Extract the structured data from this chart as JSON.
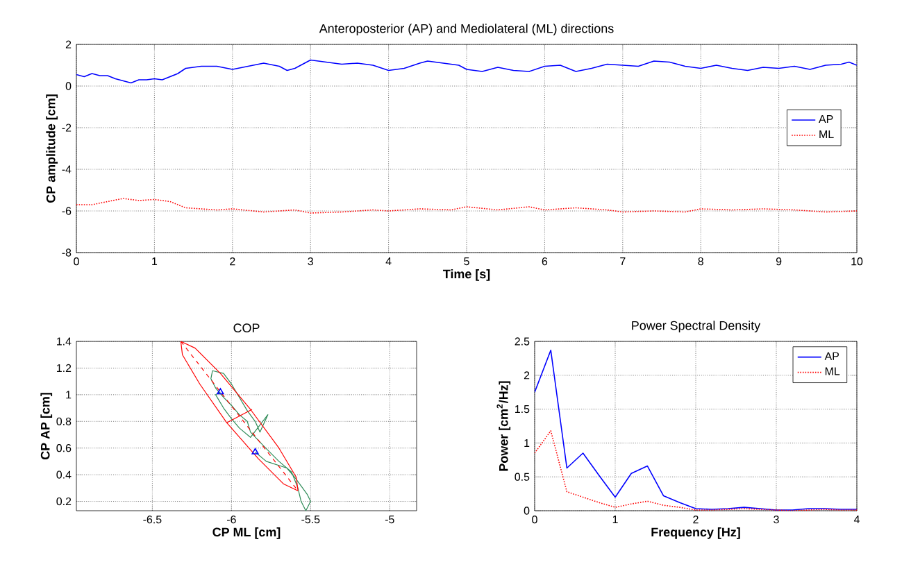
{
  "chart_data": [
    {
      "type": "line",
      "title": "Anteroposterior (AP) and Mediolateral (ML) directions",
      "xlabel": "Time [s]",
      "ylabel": "CP amplitude [cm]",
      "xlim": [
        0,
        10
      ],
      "ylim": [
        -8,
        2
      ],
      "xticks": [
        0,
        1,
        2,
        3,
        4,
        5,
        6,
        7,
        8,
        9,
        10
      ],
      "yticks": [
        -8,
        -6,
        -4,
        -2,
        0,
        2
      ],
      "grid": true,
      "legend": "right",
      "series": [
        {
          "name": "AP",
          "color": "#0000ff",
          "line_style": "solid",
          "x": [
            0,
            0.1,
            0.2,
            0.3,
            0.4,
            0.5,
            0.6,
            0.7,
            0.8,
            0.9,
            1.0,
            1.1,
            1.2,
            1.3,
            1.4,
            1.6,
            1.8,
            2.0,
            2.2,
            2.4,
            2.6,
            2.7,
            2.8,
            3.0,
            3.2,
            3.4,
            3.6,
            3.8,
            4.0,
            4.2,
            4.4,
            4.5,
            4.7,
            4.9,
            5.0,
            5.2,
            5.4,
            5.6,
            5.8,
            6.0,
            6.2,
            6.4,
            6.6,
            6.8,
            7.0,
            7.2,
            7.4,
            7.6,
            7.8,
            8.0,
            8.2,
            8.4,
            8.6,
            8.8,
            9.0,
            9.2,
            9.4,
            9.6,
            9.8,
            9.9,
            10
          ],
          "values": [
            0.55,
            0.45,
            0.6,
            0.5,
            0.5,
            0.35,
            0.25,
            0.15,
            0.3,
            0.3,
            0.35,
            0.3,
            0.45,
            0.6,
            0.85,
            0.95,
            0.95,
            0.8,
            0.95,
            1.1,
            0.95,
            0.75,
            0.85,
            1.25,
            1.15,
            1.05,
            1.1,
            1.0,
            0.75,
            0.85,
            1.1,
            1.2,
            1.1,
            1.0,
            0.8,
            0.7,
            0.9,
            0.75,
            0.7,
            0.95,
            1.0,
            0.7,
            0.85,
            1.05,
            1.0,
            0.95,
            1.2,
            1.15,
            0.95,
            0.85,
            1.0,
            0.85,
            0.75,
            0.9,
            0.85,
            0.95,
            0.8,
            1.0,
            1.05,
            1.15,
            1.0
          ]
        },
        {
          "name": "ML",
          "color": "#ff0000",
          "line_style": "dotted",
          "x": [
            0,
            0.2,
            0.4,
            0.6,
            0.8,
            1.0,
            1.2,
            1.4,
            1.6,
            1.8,
            2.0,
            2.4,
            2.8,
            3.0,
            3.4,
            3.8,
            4.0,
            4.4,
            4.8,
            5.0,
            5.4,
            5.8,
            6.0,
            6.4,
            6.8,
            7.0,
            7.4,
            7.8,
            8.0,
            8.4,
            8.8,
            9.2,
            9.6,
            10
          ],
          "values": [
            -5.7,
            -5.7,
            -5.55,
            -5.4,
            -5.5,
            -5.45,
            -5.55,
            -5.85,
            -5.9,
            -5.95,
            -5.9,
            -6.05,
            -5.95,
            -6.1,
            -6.05,
            -5.95,
            -6.0,
            -5.9,
            -5.95,
            -5.8,
            -5.95,
            -5.8,
            -5.95,
            -5.85,
            -5.95,
            -6.05,
            -6.0,
            -6.05,
            -5.9,
            -5.95,
            -5.9,
            -5.95,
            -6.05,
            -6.0
          ]
        }
      ]
    },
    {
      "type": "line",
      "title": "COP",
      "xlabel": "CP ML [cm]",
      "ylabel": "CP AP [cm]",
      "xlim": [
        -6.98,
        -4.83
      ],
      "ylim": [
        0.13,
        1.4
      ],
      "xticks": [
        -6.5,
        -6,
        -5.5,
        -5
      ],
      "yticks": [
        0.2,
        0.4,
        0.6,
        0.8,
        1,
        1.2,
        1.4
      ],
      "grid": true,
      "series": [
        {
          "color": "#2e8b57",
          "line_style": "solid",
          "x": [
            -5.85,
            -5.78,
            -5.65,
            -5.6,
            -5.55,
            -5.52,
            -5.5,
            -5.53,
            -5.56,
            -5.58,
            -5.62,
            -5.7,
            -5.8,
            -5.88,
            -5.9,
            -5.95,
            -6.0,
            -6.05,
            -6.1,
            -6.13,
            -6.12,
            -6.05,
            -6.0,
            -5.95,
            -5.9,
            -5.85,
            -5.82,
            -5.77,
            -5.88,
            -5.95,
            -6.0,
            -6.05,
            -6.1,
            -6.07
          ],
          "values": [
            0.57,
            0.5,
            0.45,
            0.38,
            0.3,
            0.25,
            0.2,
            0.13,
            0.2,
            0.3,
            0.42,
            0.5,
            0.62,
            0.72,
            0.8,
            0.85,
            0.92,
            0.98,
            1.05,
            1.12,
            1.18,
            1.16,
            1.08,
            0.98,
            0.88,
            0.8,
            0.72,
            0.85,
            0.68,
            0.75,
            0.82,
            0.9,
            1.0,
            1.02
          ]
        },
        {
          "color": "#ff0000",
          "line_style": "solid",
          "x": [
            -6.32,
            -6.23,
            -6.07,
            -5.88,
            -5.7,
            -5.59,
            -5.58
          ],
          "values": [
            1.4,
            1.35,
            1.16,
            0.89,
            0.6,
            0.38,
            0.28
          ]
        },
        {
          "color": "#ff0000",
          "line_style": "solid",
          "x": [
            -6.32,
            -6.31,
            -6.2,
            -6.03,
            -5.83,
            -5.67,
            -5.58
          ],
          "values": [
            1.4,
            1.3,
            1.08,
            0.79,
            0.52,
            0.33,
            0.28
          ]
        },
        {
          "color": "#ff0000",
          "line_style": "dashed",
          "x": [
            -6.32,
            -5.58
          ],
          "values": [
            1.4,
            0.28
          ]
        },
        {
          "color": "#ff0000",
          "line_style": "solid",
          "x": [
            -6.03,
            -5.87
          ],
          "values": [
            0.79,
            0.89
          ]
        },
        {
          "type": "scatter",
          "marker": "triangle",
          "color": "#0000ff",
          "x": [
            -6.07,
            -5.85
          ],
          "values": [
            1.02,
            0.57
          ]
        }
      ]
    },
    {
      "type": "line",
      "title": "Power Spectral Density",
      "xlabel": "Frequency [Hz]",
      "ylabel": "Power [cm$^{2}$/Hz]",
      "xlim": [
        0,
        4
      ],
      "ylim": [
        0,
        2.5
      ],
      "xticks": [
        0,
        1,
        2,
        3,
        4
      ],
      "yticks": [
        0,
        0.5,
        1,
        1.5,
        2,
        2.5
      ],
      "grid": true,
      "legend": "top right",
      "series": [
        {
          "name": "AP",
          "color": "#0000ff",
          "line_style": "solid",
          "x": [
            0,
            0.2,
            0.4,
            0.6,
            0.8,
            1.0,
            1.2,
            1.4,
            1.6,
            1.8,
            2.0,
            2.2,
            2.4,
            2.6,
            2.8,
            3.0,
            3.2,
            3.4,
            3.6,
            3.8,
            4.0
          ],
          "values": [
            1.75,
            2.37,
            0.63,
            0.85,
            0.52,
            0.2,
            0.55,
            0.66,
            0.22,
            0.12,
            0.03,
            0.02,
            0.03,
            0.05,
            0.03,
            0.01,
            0.01,
            0.03,
            0.03,
            0.02,
            0.02
          ]
        },
        {
          "name": "ML",
          "color": "#ff0000",
          "line_style": "dotted",
          "x": [
            0,
            0.2,
            0.4,
            0.6,
            0.8,
            1.0,
            1.2,
            1.4,
            1.6,
            1.8,
            2.0,
            2.2,
            2.4,
            2.6,
            2.8,
            3.0,
            3.2,
            3.4,
            3.6,
            3.8,
            4.0
          ],
          "values": [
            0.85,
            1.18,
            0.28,
            0.2,
            0.12,
            0.05,
            0.1,
            0.14,
            0.08,
            0.05,
            0.01,
            0.01,
            0.02,
            0.03,
            0.02,
            0.01,
            0.0,
            0.01,
            0.02,
            0.01,
            0.01
          ]
        }
      ]
    }
  ]
}
